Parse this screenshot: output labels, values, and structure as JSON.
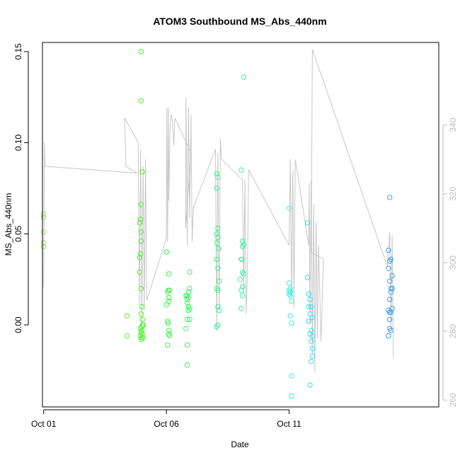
{
  "chart_data": {
    "type": "scatter",
    "title": "ATOM3 Southbound MS_Abs_440nm",
    "xlabel": "Date",
    "ylabel": "MS_Abs_440nm",
    "x_unit": "day of October 2017",
    "xlim": [
      0.95,
      17.1
    ],
    "ylim": [
      -0.045,
      0.155
    ],
    "y2lim": [
      258,
      364
    ],
    "y_ticks": [
      0.0,
      0.05,
      0.1,
      0.15
    ],
    "y_tick_labels": [
      "0.00",
      "0.05",
      "0.10",
      "0.15"
    ],
    "y2_ticks": [
      260,
      280,
      300,
      320,
      340
    ],
    "y2_tick_labels": [
      "260",
      "280",
      "300",
      "320",
      "340"
    ],
    "x_ticks": [
      1,
      6,
      11
    ],
    "x_tick_labels": [
      "Oct 01",
      "Oct 06",
      "Oct 11"
    ],
    "grid": false,
    "legend": "none",
    "series": [
      {
        "kind": "points",
        "y_axis": "left",
        "points": [
          [
            1.0,
            0.061,
            "#8ff04a"
          ],
          [
            1.0,
            0.059,
            "#8ff04a"
          ],
          [
            1.0,
            0.051,
            "#8ff04a"
          ],
          [
            1.0,
            0.045,
            "#8ff04a"
          ],
          [
            1.0,
            0.043,
            "#8ff04a"
          ],
          [
            4.4,
            0.005,
            "#59ef2a"
          ],
          [
            4.4,
            -0.006,
            "#59ef2a"
          ],
          [
            4.97,
            0.15,
            "#4cef2a"
          ],
          [
            4.97,
            0.123,
            "#4cef2a"
          ],
          [
            5.02,
            0.084,
            "#4cef2a"
          ],
          [
            4.97,
            0.066,
            "#4cef2a"
          ],
          [
            4.94,
            0.058,
            "#4cef2a"
          ],
          [
            4.91,
            0.056,
            "#4cef2a"
          ],
          [
            4.97,
            0.051,
            "#4cef2a"
          ],
          [
            4.97,
            0.046,
            "#4cef2a"
          ],
          [
            4.94,
            0.039,
            "#4cef2a"
          ],
          [
            4.91,
            0.037,
            "#4cef2a"
          ],
          [
            4.91,
            0.029,
            "#4cef2a"
          ],
          [
            4.97,
            0.02,
            "#4cef2a"
          ],
          [
            5.0,
            0.01,
            "#4cef2a"
          ],
          [
            4.97,
            0.006,
            "#4cef2a"
          ],
          [
            5.02,
            0.003,
            "#4cef2a"
          ],
          [
            5.03,
            0.0,
            "#4cef2a"
          ],
          [
            5.05,
            0.0,
            "#4cef2a"
          ],
          [
            5.0,
            -0.001,
            "#4cef2a"
          ],
          [
            4.94,
            -0.002,
            "#4cef2a"
          ],
          [
            5.0,
            -0.003,
            "#4cef2a"
          ],
          [
            4.97,
            -0.004,
            "#4cef2a"
          ],
          [
            5.02,
            -0.005,
            "#4cef2a"
          ],
          [
            4.94,
            -0.006,
            "#4cef2a"
          ],
          [
            5.0,
            -0.007,
            "#4cef2a"
          ],
          [
            5.05,
            -0.007,
            "#4cef2a"
          ],
          [
            4.97,
            -0.008,
            "#4cef2a"
          ],
          [
            6.0,
            0.04,
            "#3bef4b"
          ],
          [
            6.1,
            0.028,
            "#3bef4b"
          ],
          [
            6.08,
            0.019,
            "#3bef4b"
          ],
          [
            6.13,
            0.019,
            "#3bef4b"
          ],
          [
            6.05,
            0.018,
            "#3bef4b"
          ],
          [
            6.1,
            0.015,
            "#3bef4b"
          ],
          [
            6.1,
            0.013,
            "#3bef4b"
          ],
          [
            6.0,
            0.011,
            "#3bef4b"
          ],
          [
            6.05,
            0.002,
            "#3bef4b"
          ],
          [
            6.07,
            0.001,
            "#3bef4b"
          ],
          [
            6.1,
            -0.003,
            "#3bef4b"
          ],
          [
            6.1,
            -0.005,
            "#3bef4b"
          ],
          [
            6.13,
            -0.006,
            "#3bef4b"
          ],
          [
            6.05,
            -0.011,
            "#3bef4b"
          ],
          [
            6.95,
            0.029,
            "#3bef60"
          ],
          [
            6.95,
            0.02,
            "#3bef60"
          ],
          [
            6.9,
            0.018,
            "#3bef60"
          ],
          [
            6.85,
            0.016,
            "#3bef60"
          ],
          [
            6.8,
            0.016,
            "#3bef60"
          ],
          [
            6.9,
            0.015,
            "#3bef60"
          ],
          [
            6.85,
            0.014,
            "#3bef60"
          ],
          [
            6.85,
            0.012,
            "#3bef60"
          ],
          [
            6.9,
            0.01,
            "#3bef60"
          ],
          [
            6.95,
            0.009,
            "#3bef60"
          ],
          [
            6.9,
            0.008,
            "#3bef60"
          ],
          [
            6.85,
            0.003,
            "#3bef60"
          ],
          [
            6.95,
            0.003,
            "#3bef60"
          ],
          [
            6.8,
            -0.002,
            "#3bef60"
          ],
          [
            6.85,
            -0.011,
            "#3bef60"
          ],
          [
            6.85,
            -0.022,
            "#3bef60"
          ],
          [
            8.05,
            0.083,
            "#3bef8a"
          ],
          [
            8.1,
            0.081,
            "#3bef8a"
          ],
          [
            8.05,
            0.075,
            "#3bef8a"
          ],
          [
            8.1,
            0.053,
            "#3bef8a"
          ],
          [
            8.05,
            0.05,
            "#3bef8a"
          ],
          [
            8.1,
            0.048,
            "#3bef8a"
          ],
          [
            8.05,
            0.045,
            "#3bef8a"
          ],
          [
            8.12,
            0.042,
            "#3bef8a"
          ],
          [
            8.05,
            0.036,
            "#3bef8a"
          ],
          [
            8.1,
            0.031,
            "#3bef8a"
          ],
          [
            8.15,
            0.024,
            "#3bef8a"
          ],
          [
            8.05,
            0.02,
            "#3bef8a"
          ],
          [
            8.1,
            0.019,
            "#3bef8a"
          ],
          [
            8.1,
            0.01,
            "#3bef8a"
          ],
          [
            8.15,
            0.008,
            "#3bef8a"
          ],
          [
            8.1,
            0.0,
            "#3bef8a"
          ],
          [
            8.05,
            -0.001,
            "#3bef8a"
          ],
          [
            9.15,
            0.136,
            "#3befa0"
          ],
          [
            9.05,
            0.085,
            "#3befa0"
          ],
          [
            9.1,
            0.046,
            "#3befa0"
          ],
          [
            9.15,
            0.044,
            "#3befa0"
          ],
          [
            9.1,
            0.043,
            "#3befa0"
          ],
          [
            9.05,
            0.036,
            "#3befa0"
          ],
          [
            9.08,
            0.036,
            "#3befa0"
          ],
          [
            9.1,
            0.029,
            "#3befa0"
          ],
          [
            9.15,
            0.028,
            "#3befa0"
          ],
          [
            9.0,
            0.025,
            "#3befa0"
          ],
          [
            9.1,
            0.021,
            "#3befa0"
          ],
          [
            9.05,
            0.019,
            "#3befa0"
          ],
          [
            9.1,
            0.016,
            "#3befa0"
          ],
          [
            9.05,
            0.009,
            "#3befa0"
          ],
          [
            11.0,
            0.064,
            "#3befd8"
          ],
          [
            11.0,
            0.023,
            "#3befd8"
          ],
          [
            11.05,
            0.02,
            "#3befd8"
          ],
          [
            11.0,
            0.019,
            "#3befd8"
          ],
          [
            11.05,
            0.018,
            "#3befd8"
          ],
          [
            11.0,
            0.017,
            "#3befd8"
          ],
          [
            11.05,
            0.016,
            "#3befd8"
          ],
          [
            11.1,
            0.013,
            "#3befd8"
          ],
          [
            11.05,
            0.005,
            "#3befd8"
          ],
          [
            11.1,
            0.001,
            "#3befd8"
          ],
          [
            11.1,
            -0.028,
            "#3befd8"
          ],
          [
            11.1,
            -0.039,
            "#3befd8"
          ],
          [
            11.75,
            0.056,
            "#3bd8ef"
          ],
          [
            11.75,
            0.026,
            "#3bd8ef"
          ],
          [
            11.8,
            0.017,
            "#3bd8ef"
          ],
          [
            11.85,
            0.014,
            "#3bd8ef"
          ],
          [
            11.8,
            0.01,
            "#3bd8ef"
          ],
          [
            11.9,
            0.01,
            "#3bd8ef"
          ],
          [
            11.85,
            0.006,
            "#3bd8ef"
          ],
          [
            11.95,
            0.004,
            "#3bd8ef"
          ],
          [
            11.8,
            0.002,
            "#3bd8ef"
          ],
          [
            11.9,
            -0.003,
            "#3bd8ef"
          ],
          [
            11.85,
            -0.005,
            "#3bd8ef"
          ],
          [
            11.95,
            -0.006,
            "#3bd8ef"
          ],
          [
            11.9,
            -0.009,
            "#3bd8ef"
          ],
          [
            11.95,
            -0.013,
            "#3bd8ef"
          ],
          [
            11.95,
            -0.017,
            "#3bd8ef"
          ],
          [
            11.9,
            -0.02,
            "#3bd8ef"
          ],
          [
            11.85,
            -0.033,
            "#3bd8ef"
          ],
          [
            15.1,
            0.07,
            "#3b9cef"
          ],
          [
            15.05,
            0.041,
            "#3b9cef"
          ],
          [
            15.1,
            0.035,
            "#3b9cef"
          ],
          [
            15.15,
            0.036,
            "#3b9cef"
          ],
          [
            15.05,
            0.031,
            "#3b9cef"
          ],
          [
            15.2,
            0.027,
            "#3b9cef"
          ],
          [
            15.1,
            0.024,
            "#3b9cef"
          ],
          [
            15.15,
            0.02,
            "#3b9cef"
          ],
          [
            15.2,
            0.02,
            "#3b9cef"
          ],
          [
            15.15,
            0.018,
            "#3b9cef"
          ],
          [
            15.1,
            0.014,
            "#3b9cef"
          ],
          [
            15.2,
            0.009,
            "#3b9cef"
          ],
          [
            15.05,
            0.008,
            "#3b9cef"
          ],
          [
            15.1,
            0.007,
            "#3b9cef"
          ],
          [
            15.15,
            0.007,
            "#3b9cef"
          ],
          [
            15.1,
            0.003,
            "#3b9cef"
          ],
          [
            15.1,
            -0.002,
            "#3b9cef"
          ],
          [
            15.15,
            -0.003,
            "#3b9cef"
          ],
          [
            15.05,
            -0.006,
            "#3b9cef"
          ]
        ]
      },
      {
        "kind": "line",
        "y_axis": "right",
        "color": "#c8c8c8",
        "points": [
          [
            1.0,
            293
          ],
          [
            1.03,
            335
          ],
          [
            1.05,
            328
          ],
          [
            4.8,
            326
          ],
          [
            4.35,
            328
          ],
          [
            4.3,
            342
          ],
          [
            4.85,
            335
          ],
          [
            4.9,
            288
          ],
          [
            4.95,
            333
          ],
          [
            5.0,
            282
          ],
          [
            5.05,
            328
          ],
          [
            5.1,
            286
          ],
          [
            5.15,
            330
          ],
          [
            5.2,
            289
          ],
          [
            6.0,
            307
          ],
          [
            6.02,
            345
          ],
          [
            6.05,
            306
          ],
          [
            6.08,
            345
          ],
          [
            6.1,
            318
          ],
          [
            6.15,
            340
          ],
          [
            6.2,
            343
          ],
          [
            6.25,
            341
          ],
          [
            6.3,
            334
          ],
          [
            6.35,
            342
          ],
          [
            7.0,
            332
          ],
          [
            6.78,
            310
          ],
          [
            6.8,
            348
          ],
          [
            6.85,
            305
          ],
          [
            6.9,
            345
          ],
          [
            6.95,
            313
          ],
          [
            7.0,
            343
          ],
          [
            7.05,
            306
          ],
          [
            7.1,
            316
          ],
          [
            8.0,
            333
          ],
          [
            8.05,
            280
          ],
          [
            8.1,
            332
          ],
          [
            8.15,
            286
          ],
          [
            8.2,
            336
          ],
          [
            8.25,
            330
          ],
          [
            9.1,
            324
          ],
          [
            9.15,
            291
          ],
          [
            9.2,
            324
          ],
          [
            9.25,
            285
          ],
          [
            9.3,
            296
          ],
          [
            9.35,
            327
          ],
          [
            11.0,
            305
          ],
          [
            11.05,
            330
          ],
          [
            11.1,
            290
          ],
          [
            11.15,
            327
          ],
          [
            11.2,
            287
          ],
          [
            11.25,
            330
          ],
          [
            11.8,
            305
          ],
          [
            11.82,
            323
          ],
          [
            11.85,
            282
          ],
          [
            11.9,
            324
          ],
          [
            11.95,
            273
          ],
          [
            12.0,
            317
          ],
          [
            12.05,
            268
          ],
          [
            12.1,
            312
          ],
          [
            12.15,
            278
          ],
          [
            12.2,
            305
          ],
          [
            12.3,
            277
          ],
          [
            12.4,
            301
          ],
          [
            11.9,
            303
          ],
          [
            11.95,
            362
          ],
          [
            15.0,
            299
          ],
          [
            15.05,
            303
          ],
          [
            15.1,
            309
          ],
          [
            15.15,
            280
          ],
          [
            15.2,
            308
          ],
          [
            15.25,
            272
          ]
        ]
      }
    ]
  }
}
